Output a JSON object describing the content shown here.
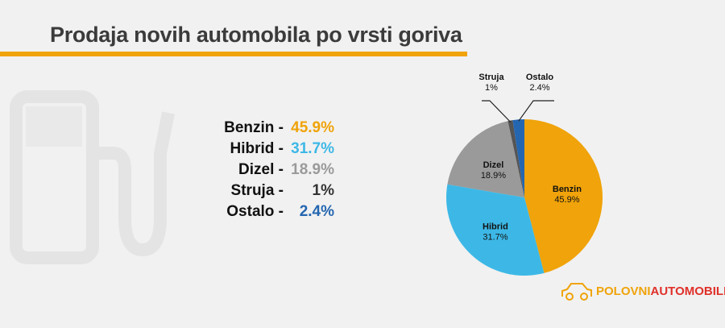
{
  "title": "Prodaja novih automobila po vrsti goriva",
  "legend": [
    {
      "label": "Benzin -",
      "value": "45.9%",
      "color": "#f0a30a"
    },
    {
      "label": "Hibrid -",
      "value": "31.7%",
      "color": "#3db8e6"
    },
    {
      "label": "Dizel -",
      "value": "18.9%",
      "color": "#9a9a9a"
    },
    {
      "label": "Struja -",
      "value": "1%",
      "color": "#333333"
    },
    {
      "label": "Ostalo -",
      "value": "2.4%",
      "color": "#2466b0"
    }
  ],
  "chart_data": {
    "type": "pie",
    "categories": [
      "Benzin",
      "Hibrid",
      "Dizel",
      "Struja",
      "Ostalo"
    ],
    "values": [
      45.9,
      31.7,
      18.9,
      1,
      2.4
    ],
    "data_labels": [
      "45.9%",
      "31.7%",
      "18.9%",
      "1%",
      "2.4%"
    ],
    "colors": [
      "#f0a30a",
      "#3db8e6",
      "#9a9a9a",
      "#555555",
      "#2466b0"
    ],
    "start": "12 o'clock, clockwise"
  },
  "logo": {
    "part1": "POLOVNI",
    "part2": "AUTOMOBILI"
  }
}
